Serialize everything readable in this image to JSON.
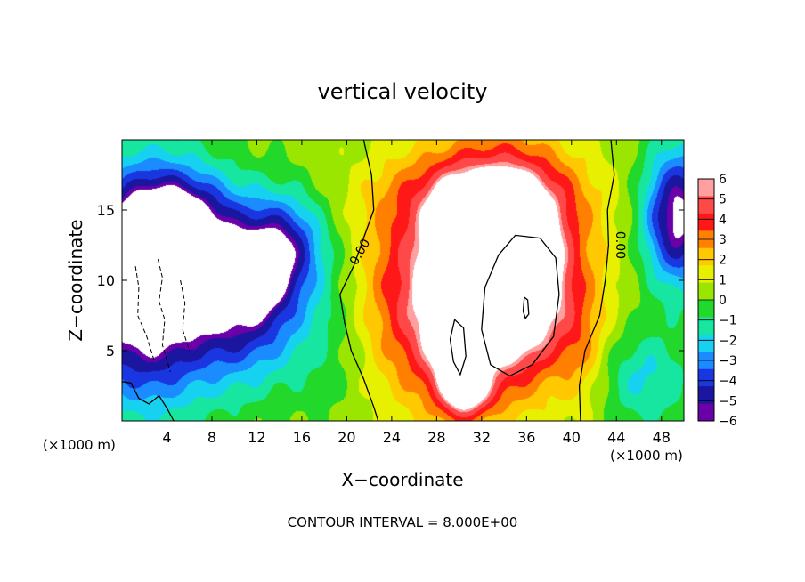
{
  "chart_data": {
    "type": "heatmap",
    "title": "vertical velocity",
    "xlabel": "X−coordinate",
    "ylabel": "Z−coordinate",
    "x_unit_left": "(×1000 m)",
    "x_unit_right": "(×1000 m)",
    "xlim": [
      0,
      50
    ],
    "ylim": [
      0,
      20
    ],
    "x_ticks": [
      4,
      8,
      12,
      16,
      20,
      24,
      28,
      32,
      36,
      40,
      44,
      48
    ],
    "y_ticks": [
      5,
      10,
      15
    ],
    "colorbar": {
      "levels": [
        6,
        5,
        4,
        3,
        2,
        1,
        0,
        -1,
        -2,
        -3,
        -4,
        -5,
        -6
      ],
      "labels": [
        "6",
        "5",
        "4",
        "3",
        "2",
        "1",
        "0",
        "−1",
        "−2",
        "−3",
        "−4",
        "−5",
        "−6"
      ],
      "colors": [
        "#ff9f9f",
        "#ff4848",
        "#ff1818",
        "#ff8000",
        "#ffc800",
        "#e6f000",
        "#9be600",
        "#22d82a",
        "#16e6a0",
        "#16d2f0",
        "#1a8cff",
        "#1a36e0",
        "#1a16a0",
        "#6a00a8"
      ]
    },
    "annotations": [
      {
        "text": "0.00",
        "x": 21.2,
        "y": 12.0,
        "rotation": -60
      },
      {
        "text": "0.00",
        "x": 44.3,
        "y": 12.5,
        "rotation": 90
      }
    ],
    "contour_interval_label": "CONTOUR INTERVAL = 8.000E+00",
    "field": {
      "background": 0.4,
      "blobs": [
        {
          "x": 2.0,
          "y": 9.5,
          "sx": 4.5,
          "sy": 5.5,
          "a": -9
        },
        {
          "x": 4.5,
          "y": 14.0,
          "sx": 3.5,
          "sy": 2.5,
          "a": -5
        },
        {
          "x": 11.0,
          "y": 9.0,
          "sx": 3.5,
          "sy": 4.0,
          "a": -6
        },
        {
          "x": 14.5,
          "y": 12.5,
          "sx": 2.5,
          "sy": 2.5,
          "a": -4
        },
        {
          "x": 12.5,
          "y": 10.5,
          "sx": 1.2,
          "sy": 1.5,
          "a": -3
        },
        {
          "x": 49.5,
          "y": 14.5,
          "sx": 2.2,
          "sy": 3.5,
          "a": -7
        },
        {
          "x": 46.5,
          "y": 3.0,
          "sx": 3.0,
          "sy": 2.5,
          "a": -2.5
        },
        {
          "x": 33.0,
          "y": 11.0,
          "sx": 5.5,
          "sy": 6.0,
          "a": 5.5
        },
        {
          "x": 34.5,
          "y": 10.5,
          "sx": 3.2,
          "sy": 4.2,
          "a": 8
        },
        {
          "x": 29.0,
          "y": 7.0,
          "sx": 2.5,
          "sy": 4.5,
          "a": 4
        },
        {
          "x": 29.5,
          "y": 12.5,
          "sx": 1.5,
          "sy": 2.5,
          "a": 4
        },
        {
          "x": 30.0,
          "y": 4.0,
          "sx": 1.2,
          "sy": 2.0,
          "a": 4
        },
        {
          "x": 24.0,
          "y": 9.0,
          "sx": 2.5,
          "sy": 5.0,
          "a": 2
        },
        {
          "x": 32.0,
          "y": 16.0,
          "sx": 6.0,
          "sy": 2.0,
          "a": 2.5
        },
        {
          "x": 31.0,
          "y": 2.0,
          "sx": 1.5,
          "sy": 1.2,
          "a": 3
        },
        {
          "x": 41.0,
          "y": 5.0,
          "sx": 1.5,
          "sy": 3.0,
          "a": 1.5
        },
        {
          "x": 18.0,
          "y": 6.0,
          "sx": 3.0,
          "sy": 4.0,
          "a": -1.0
        }
      ],
      "zero_lines": [
        [
          [
            21.5,
            20
          ],
          [
            22.2,
            17.5
          ],
          [
            22.4,
            15.0
          ],
          [
            21.5,
            13.0
          ],
          [
            20.6,
            11.0
          ],
          [
            19.4,
            9.0
          ],
          [
            19.8,
            7.0
          ],
          [
            20.4,
            5.0
          ],
          [
            21.5,
            3.0
          ],
          [
            22.4,
            1.0
          ],
          [
            22.8,
            0
          ]
        ],
        [
          [
            43.5,
            20
          ],
          [
            43.8,
            17.5
          ],
          [
            43.2,
            15.0
          ],
          [
            43.3,
            12.5
          ],
          [
            43.0,
            10.0
          ],
          [
            42.5,
            7.5
          ],
          [
            41.2,
            5.0
          ],
          [
            40.7,
            2.5
          ],
          [
            40.8,
            0
          ]
        ],
        [
          [
            0,
            2.8
          ],
          [
            0.8,
            2.7
          ],
          [
            1.5,
            1.6
          ],
          [
            2.4,
            1.2
          ],
          [
            3.3,
            1.8
          ],
          [
            4.0,
            0.9
          ],
          [
            4.6,
            0
          ]
        ],
        [
          [
            33.5,
            11.8
          ],
          [
            35.0,
            13.2
          ],
          [
            37.2,
            13.0
          ],
          [
            38.6,
            11.6
          ],
          [
            38.9,
            9.0
          ],
          [
            38.4,
            6.0
          ],
          [
            36.5,
            4.0
          ],
          [
            34.5,
            3.2
          ],
          [
            32.8,
            4.0
          ],
          [
            32.0,
            6.5
          ],
          [
            32.3,
            9.5
          ],
          [
            33.5,
            11.8
          ]
        ],
        [
          [
            29.6,
            7.2
          ],
          [
            30.4,
            6.6
          ],
          [
            30.6,
            4.6
          ],
          [
            30.1,
            3.3
          ],
          [
            29.5,
            4.2
          ],
          [
            29.2,
            5.8
          ],
          [
            29.6,
            7.2
          ]
        ],
        [
          [
            35.8,
            8.8
          ],
          [
            36.1,
            8.6
          ],
          [
            36.2,
            7.6
          ],
          [
            35.9,
            7.3
          ],
          [
            35.7,
            7.8
          ],
          [
            35.8,
            8.8
          ]
        ]
      ],
      "negative_lines": [
        [
          [
            1.2,
            11.0
          ],
          [
            1.5,
            9.5
          ],
          [
            1.4,
            7.5
          ],
          [
            2.2,
            6.0
          ],
          [
            2.9,
            4.2
          ]
        ],
        [
          [
            3.2,
            11.5
          ],
          [
            3.6,
            10.2
          ],
          [
            3.3,
            8.5
          ],
          [
            3.8,
            7.2
          ],
          [
            3.6,
            5.4
          ],
          [
            4.3,
            3.5
          ]
        ],
        [
          [
            5.2,
            10.0
          ],
          [
            5.6,
            8.4
          ],
          [
            5.4,
            6.5
          ],
          [
            6.0,
            5.0
          ]
        ]
      ]
    }
  }
}
